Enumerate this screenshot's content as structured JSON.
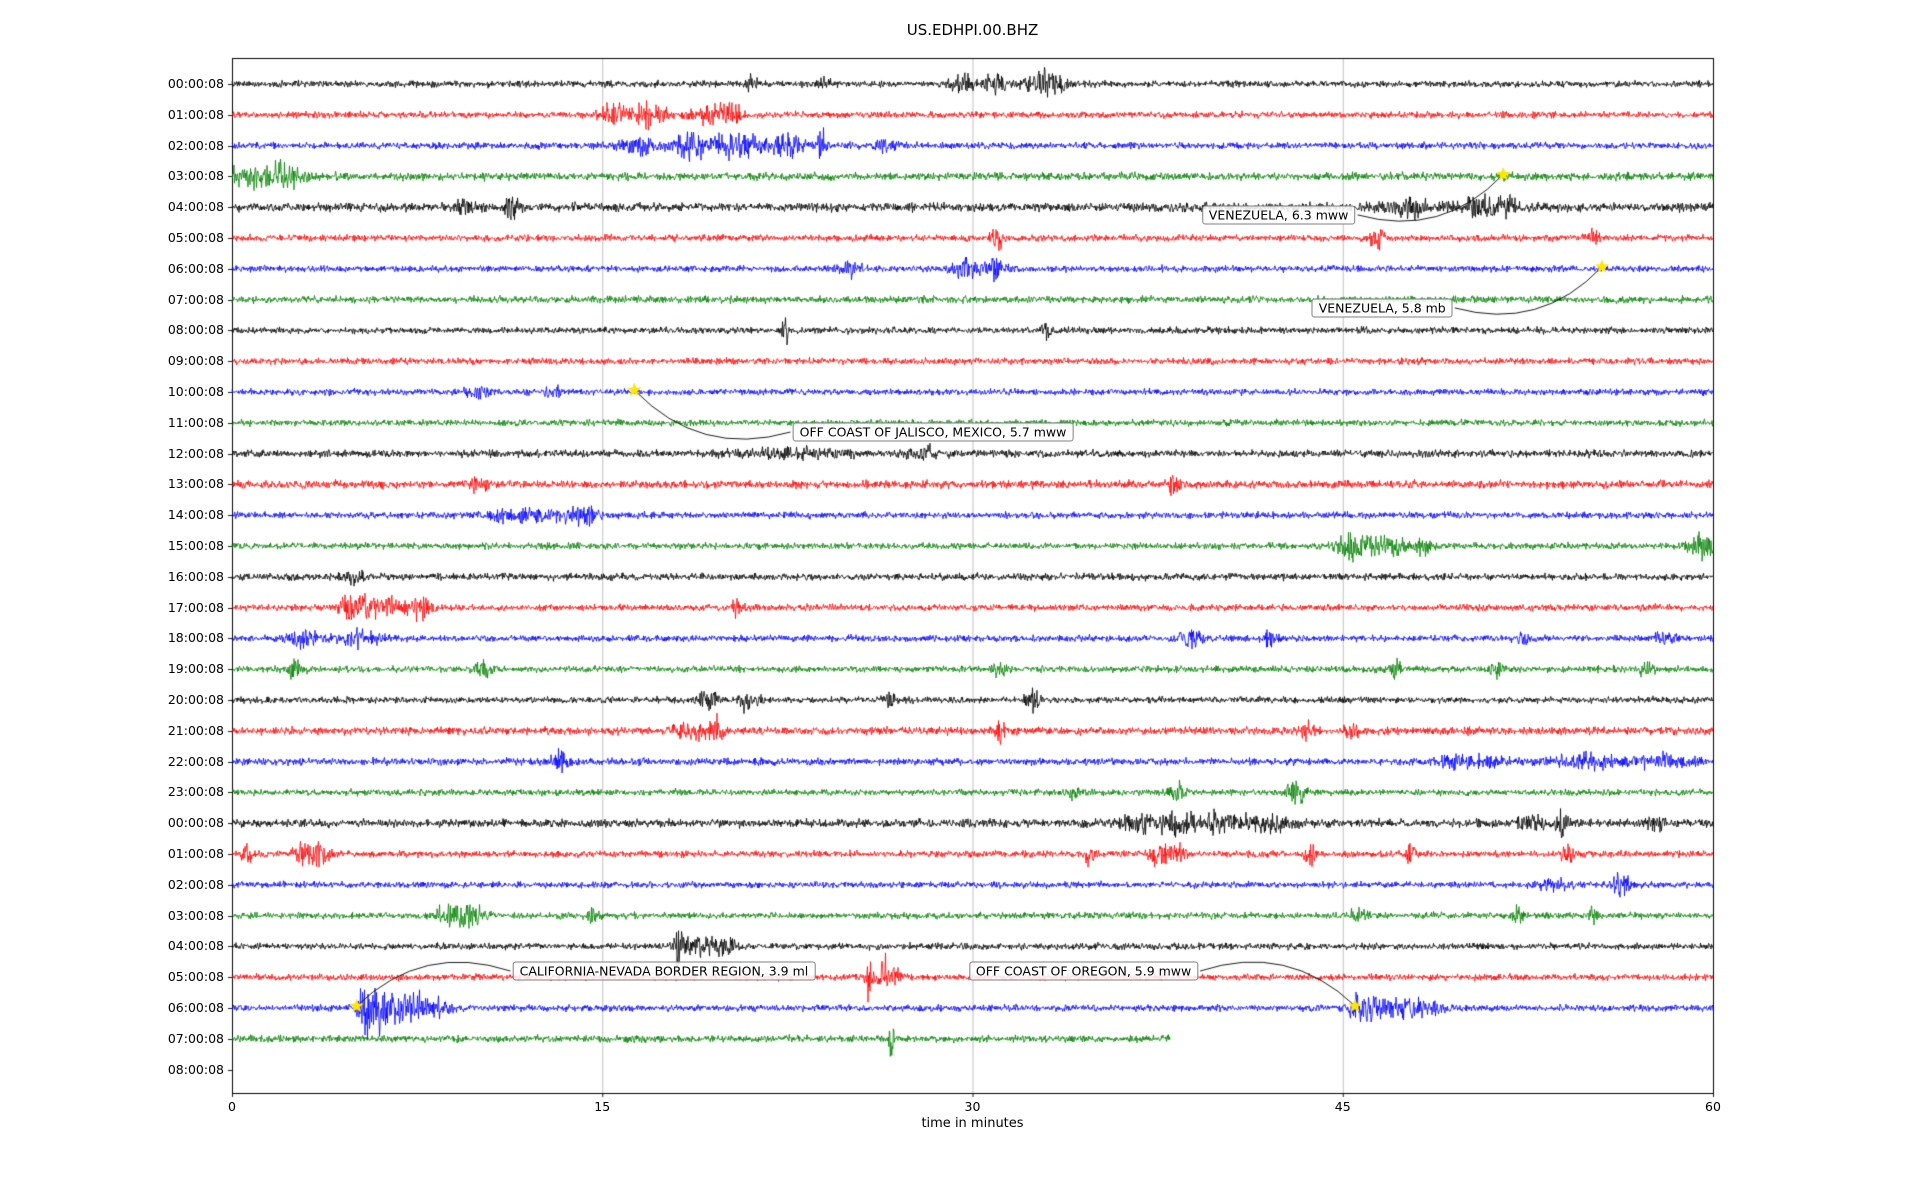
{
  "chart_data": {
    "type": "line",
    "title": "US.EDHPI.00.BHZ",
    "xlabel": "time in minutes",
    "x_range": [
      0,
      60
    ],
    "x_ticks": [
      0,
      15,
      30,
      45,
      60
    ],
    "grid": "vertical",
    "colors": {
      "black": "#000000",
      "red": "#ff0000",
      "blue": "#0000ff",
      "green": "#008000",
      "star": "#ffe600",
      "grid": "#b0b0b0",
      "frame": "#000000"
    },
    "traces": [
      {
        "label": "00:00:08",
        "color": "#000000",
        "base": 1.0,
        "bursts": [
          [
            21,
            0.15,
            3.5
          ],
          [
            24,
            0.2,
            2
          ],
          [
            29.6,
            0.3,
            2.8
          ],
          [
            30.8,
            0.35,
            3.6
          ],
          [
            32.9,
            0.5,
            4.5
          ]
        ]
      },
      {
        "label": "01:00:08",
        "color": "#ff0000",
        "base": 1.0,
        "bursts": [
          [
            15.5,
            0.4,
            2.8
          ],
          [
            16.9,
            0.5,
            3.6
          ],
          [
            19.4,
            0.5,
            3.2
          ],
          [
            20.3,
            0.2,
            4.5
          ]
        ]
      },
      {
        "label": "02:00:08",
        "color": "#0000ff",
        "base": 1.0,
        "bursts": [
          [
            16.5,
            0.5,
            2.6
          ],
          [
            18.6,
            0.6,
            3.2
          ],
          [
            20.6,
            0.8,
            3.2
          ],
          [
            22.5,
            0.4,
            3.4
          ],
          [
            23.9,
            0.12,
            7
          ],
          [
            26.5,
            0.3,
            2
          ]
        ]
      },
      {
        "label": "03:00:08",
        "color": "#008000",
        "base": 1.2,
        "bursts": [
          [
            0.8,
            1.2,
            2.2
          ],
          [
            2.2,
            0.5,
            2.6
          ]
        ]
      },
      {
        "label": "04:00:08",
        "color": "#000000",
        "base": 1.35,
        "bursts": [
          [
            9.5,
            0.3,
            2.2
          ],
          [
            11.3,
            0.18,
            4.2
          ],
          [
            47.6,
            0.8,
            2.2
          ],
          [
            50.6,
            0.6,
            2.8
          ],
          [
            51.8,
            0.3,
            2.4
          ]
        ]
      },
      {
        "label": "05:00:08",
        "color": "#ff0000",
        "base": 1.0,
        "bursts": [
          [
            31,
            0.15,
            4.2
          ],
          [
            46.4,
            0.18,
            3.4
          ],
          [
            55.2,
            0.15,
            2.6
          ]
        ]
      },
      {
        "label": "06:00:08",
        "color": "#0000ff",
        "base": 1.0,
        "bursts": [
          [
            25,
            0.3,
            2
          ],
          [
            29.9,
            0.5,
            2.8
          ],
          [
            30.9,
            0.3,
            2.6
          ]
        ]
      },
      {
        "label": "07:00:08",
        "color": "#008000",
        "base": 1.1,
        "bursts": []
      },
      {
        "label": "08:00:08",
        "color": "#000000",
        "base": 1.0,
        "bursts": [
          [
            22.4,
            0.12,
            3.8
          ],
          [
            33,
            0.2,
            1.8
          ]
        ]
      },
      {
        "label": "09:00:08",
        "color": "#ff0000",
        "base": 1.0,
        "bursts": []
      },
      {
        "label": "10:00:08",
        "color": "#0000ff",
        "base": 1.0,
        "bursts": [
          [
            10,
            0.3,
            1.8
          ],
          [
            13,
            0.2,
            2
          ]
        ]
      },
      {
        "label": "11:00:08",
        "color": "#008000",
        "base": 1.0,
        "bursts": []
      },
      {
        "label": "12:00:08",
        "color": "#000000",
        "base": 1.15,
        "bursts": [
          [
            23,
            1.5,
            1.5
          ],
          [
            28,
            0.5,
            1.8
          ]
        ]
      },
      {
        "label": "13:00:08",
        "color": "#ff0000",
        "base": 1.2,
        "bursts": [
          [
            10,
            0.3,
            1.8
          ],
          [
            38.2,
            0.15,
            3.4
          ]
        ]
      },
      {
        "label": "14:00:08",
        "color": "#0000ff",
        "base": 1.0,
        "bursts": [
          [
            12,
            1.2,
            1.8
          ],
          [
            14.2,
            0.5,
            2.2
          ]
        ]
      },
      {
        "label": "15:00:08",
        "color": "#008000",
        "base": 1.0,
        "bursts": [
          [
            45.4,
            0.4,
            4.2
          ],
          [
            46.6,
            0.7,
            3
          ],
          [
            48.2,
            0.3,
            2.4
          ],
          [
            59.6,
            0.4,
            4.2
          ]
        ]
      },
      {
        "label": "16:00:08",
        "color": "#000000",
        "base": 1.1,
        "bursts": [
          [
            5,
            0.3,
            1.8
          ]
        ]
      },
      {
        "label": "17:00:08",
        "color": "#ff0000",
        "base": 1.0,
        "bursts": [
          [
            4.9,
            0.4,
            3
          ],
          [
            6.1,
            0.6,
            3
          ],
          [
            7.6,
            0.4,
            2.6
          ],
          [
            20.5,
            0.2,
            2.2
          ]
        ]
      },
      {
        "label": "18:00:08",
        "color": "#0000ff",
        "base": 1.0,
        "bursts": [
          [
            2.9,
            0.4,
            2.6
          ],
          [
            5.1,
            0.5,
            3
          ],
          [
            38.9,
            0.3,
            3
          ],
          [
            42.1,
            0.2,
            2.6
          ],
          [
            52.3,
            0.2,
            2.2
          ],
          [
            58.1,
            0.25,
            3
          ]
        ]
      },
      {
        "label": "19:00:08",
        "color": "#008000",
        "base": 1.0,
        "bursts": [
          [
            2.6,
            0.2,
            3
          ],
          [
            10.1,
            0.25,
            2.6
          ],
          [
            31.1,
            0.2,
            2.2
          ],
          [
            47.1,
            0.2,
            2.6
          ],
          [
            51.2,
            0.2,
            2.6
          ],
          [
            57.3,
            0.2,
            2.2
          ]
        ]
      },
      {
        "label": "20:00:08",
        "color": "#000000",
        "base": 1.0,
        "bursts": [
          [
            19.3,
            0.3,
            3.4
          ],
          [
            20.9,
            0.25,
            3.4
          ],
          [
            26.6,
            0.2,
            2.2
          ],
          [
            32.4,
            0.2,
            3.4
          ]
        ]
      },
      {
        "label": "21:00:08",
        "color": "#ff0000",
        "base": 1.2,
        "bursts": [
          [
            18.6,
            0.4,
            3.2
          ],
          [
            19.6,
            0.3,
            3.2
          ],
          [
            31.1,
            0.15,
            3.4
          ],
          [
            43.6,
            0.2,
            3
          ],
          [
            45.3,
            0.2,
            2.6
          ]
        ]
      },
      {
        "label": "22:00:08",
        "color": "#0000ff",
        "base": 1.1,
        "bursts": [
          [
            13.3,
            0.2,
            3.4
          ],
          [
            50.2,
            1,
            1.6
          ],
          [
            54.8,
            1.2,
            1.7
          ],
          [
            58,
            0.8,
            1.7
          ]
        ]
      },
      {
        "label": "23:00:08",
        "color": "#008000",
        "base": 1.0,
        "bursts": [
          [
            34.1,
            0.2,
            2.2
          ],
          [
            38.3,
            0.2,
            3.4
          ],
          [
            43.1,
            0.25,
            3
          ]
        ]
      },
      {
        "label": "00:00:08",
        "color": "#000000",
        "base": 1.25,
        "bursts": [
          [
            36.6,
            0.5,
            2
          ],
          [
            38.2,
            0.8,
            2.4
          ],
          [
            40.2,
            0.8,
            2.4
          ],
          [
            42.2,
            0.6,
            2
          ],
          [
            52.6,
            0.4,
            2.4
          ],
          [
            53.9,
            0.18,
            4
          ],
          [
            57.6,
            0.3,
            2
          ]
        ]
      },
      {
        "label": "01:00:08",
        "color": "#ff0000",
        "base": 1.0,
        "bursts": [
          [
            0.6,
            0.15,
            3.4
          ],
          [
            2.9,
            0.3,
            3.8
          ],
          [
            3.6,
            0.2,
            3.4
          ],
          [
            34.8,
            0.15,
            3.4
          ],
          [
            37.6,
            0.3,
            3.4
          ],
          [
            38.4,
            0.2,
            3
          ],
          [
            43.7,
            0.18,
            3.8
          ],
          [
            47.7,
            0.18,
            3
          ],
          [
            54.1,
            0.2,
            2.2
          ]
        ]
      },
      {
        "label": "02:00:08",
        "color": "#0000ff",
        "base": 1.0,
        "bursts": [
          [
            53.6,
            0.4,
            2
          ],
          [
            56.3,
            0.22,
            4.2
          ]
        ]
      },
      {
        "label": "03:00:08",
        "color": "#008000",
        "base": 1.0,
        "bursts": [
          [
            8.9,
            0.5,
            2.8
          ],
          [
            9.9,
            0.3,
            2.6
          ],
          [
            14.6,
            0.2,
            2
          ],
          [
            45.6,
            0.2,
            2.4
          ],
          [
            52.1,
            0.2,
            2.4
          ],
          [
            55.1,
            0.15,
            2.4
          ]
        ]
      },
      {
        "label": "04:00:08",
        "color": "#000000",
        "base": 1.0,
        "bursts": [
          [
            18.1,
            0.12,
            6
          ],
          [
            18.9,
            0.5,
            2.6
          ],
          [
            20.1,
            0.3,
            2.2
          ]
        ]
      },
      {
        "label": "05:00:08",
        "color": "#ff0000",
        "base": 1.0,
        "bursts": [
          [
            25.8,
            0.1,
            5
          ],
          [
            26.4,
            0.13,
            9
          ],
          [
            26.9,
            0.1,
            4.5
          ]
        ]
      },
      {
        "label": "06:00:08",
        "color": "#0000ff",
        "base": 1.0,
        "bursts": [
          [
            5.35,
            0.12,
            5
          ],
          [
            5.95,
            0.5,
            7
          ],
          [
            7.1,
            0.7,
            3.4
          ],
          [
            8.2,
            0.5,
            2
          ],
          [
            45.7,
            0.3,
            2.6
          ],
          [
            46.6,
            0.8,
            2.6
          ],
          [
            48.1,
            0.6,
            2.2
          ]
        ]
      },
      {
        "label": "07:00:08",
        "color": "#008000",
        "base": 1.1,
        "end": 38,
        "bursts": [
          [
            26.7,
            0.07,
            7
          ]
        ]
      },
      {
        "label": "08:00:08",
        "color": null,
        "base": 0,
        "bursts": []
      }
    ],
    "events": [
      {
        "label": "VENEZUELA, 6.3 mww",
        "star": {
          "trace": 3,
          "minute": 51.5
        },
        "box": {
          "minute": 42.4,
          "row": 4.25
        },
        "side": "right",
        "rad": 0.3
      },
      {
        "label": "VENEZUELA, 5.8 mb",
        "star": {
          "trace": 6,
          "minute": 55.5
        },
        "box": {
          "minute": 46.6,
          "row": 7.27
        },
        "side": "right",
        "rad": 0.3
      },
      {
        "label": "OFF COAST OF JALISCO, MEXICO, 5.7 mww",
        "star": {
          "trace": 10,
          "minute": 16.3
        },
        "box": {
          "minute": 28.4,
          "row": 11.3
        },
        "side": "left",
        "rad": -0.3
      },
      {
        "label": "CALIFORNIA-NEVADA BORDER REGION, 3.9 ml",
        "star": {
          "trace": 30,
          "minute": 5.05
        },
        "box": {
          "minute": 17.5,
          "row": 28.8
        },
        "side": "left",
        "rad": 0.3
      },
      {
        "label": "OFF COAST OF OREGON, 5.9 mww",
        "star": {
          "trace": 30,
          "minute": 45.5
        },
        "box": {
          "minute": 34.5,
          "row": 28.8
        },
        "side": "right",
        "rad": -0.3
      }
    ]
  }
}
